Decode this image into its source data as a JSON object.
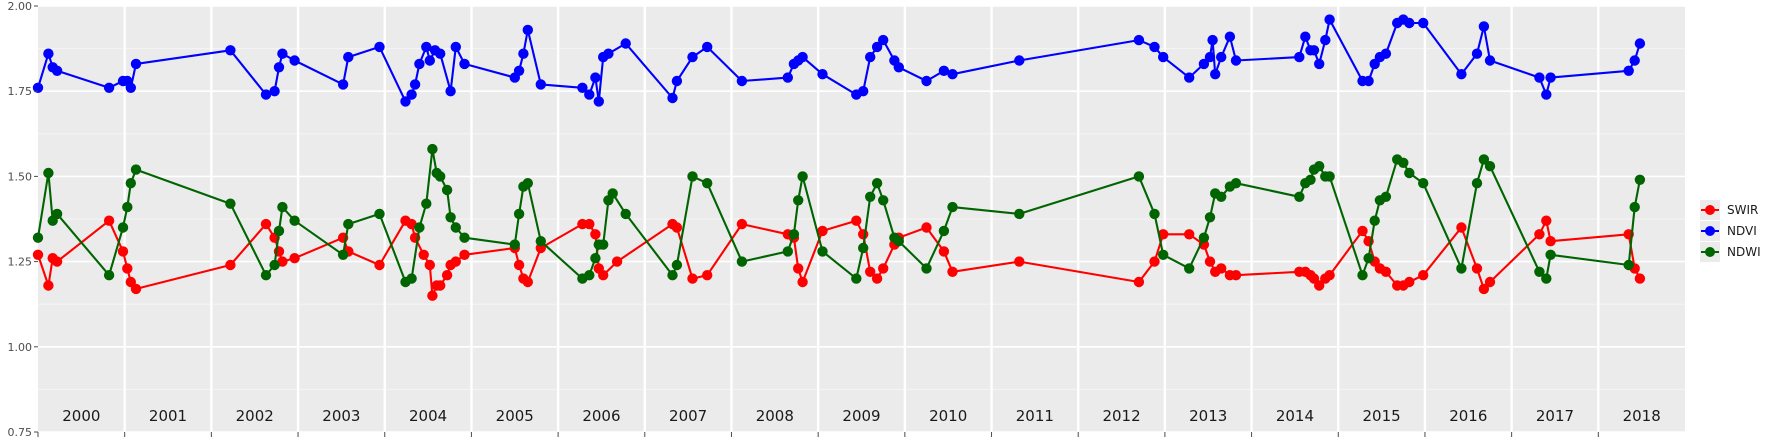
{
  "chart_data": {
    "type": "line",
    "title": "",
    "xlabel": "",
    "ylabel": "",
    "ylim": [
      0.75,
      2.0
    ],
    "yticks": [
      "0.75",
      "1.00",
      "1.25",
      "1.50",
      "1.75",
      "2.00"
    ],
    "x_unit": "year (decimal)",
    "x_range": [
      2000.0,
      2019.0
    ],
    "years": [
      "2000",
      "2001",
      "2002",
      "2003",
      "2004",
      "2005",
      "2006",
      "2007",
      "2008",
      "2009",
      "2010",
      "2011",
      "2012",
      "2013",
      "2014",
      "2015",
      "2016",
      "2017",
      "2018"
    ],
    "grid": true,
    "legend_position": "right",
    "series": [
      {
        "name": "SWIR",
        "color": "#ff0000",
        "points": [
          [
            2000.0,
            1.27
          ],
          [
            2000.12,
            1.18
          ],
          [
            2000.17,
            1.26
          ],
          [
            2000.22,
            1.25
          ],
          [
            2000.82,
            1.37
          ],
          [
            2000.98,
            1.28
          ],
          [
            2001.03,
            1.23
          ],
          [
            2001.07,
            1.19
          ],
          [
            2001.13,
            1.17
          ],
          [
            2002.22,
            1.24
          ],
          [
            2002.63,
            1.36
          ],
          [
            2002.73,
            1.32
          ],
          [
            2002.78,
            1.28
          ],
          [
            2002.82,
            1.25
          ],
          [
            2002.96,
            1.26
          ],
          [
            2003.52,
            1.32
          ],
          [
            2003.58,
            1.28
          ],
          [
            2003.94,
            1.24
          ],
          [
            2004.24,
            1.37
          ],
          [
            2004.31,
            1.36
          ],
          [
            2004.35,
            1.32
          ],
          [
            2004.45,
            1.27
          ],
          [
            2004.52,
            1.24
          ],
          [
            2004.55,
            1.15
          ],
          [
            2004.6,
            1.18
          ],
          [
            2004.64,
            1.18
          ],
          [
            2004.72,
            1.21
          ],
          [
            2004.76,
            1.24
          ],
          [
            2004.82,
            1.25
          ],
          [
            2004.92,
            1.27
          ],
          [
            2005.5,
            1.29
          ],
          [
            2005.55,
            1.24
          ],
          [
            2005.6,
            1.2
          ],
          [
            2005.65,
            1.19
          ],
          [
            2005.8,
            1.29
          ],
          [
            2006.28,
            1.36
          ],
          [
            2006.36,
            1.36
          ],
          [
            2006.43,
            1.33
          ],
          [
            2006.47,
            1.23
          ],
          [
            2006.52,
            1.21
          ],
          [
            2006.68,
            1.25
          ],
          [
            2007.32,
            1.36
          ],
          [
            2007.37,
            1.35
          ],
          [
            2007.55,
            1.2
          ],
          [
            2007.72,
            1.21
          ],
          [
            2008.12,
            1.36
          ],
          [
            2008.65,
            1.33
          ],
          [
            2008.72,
            1.32
          ],
          [
            2008.77,
            1.23
          ],
          [
            2008.82,
            1.19
          ],
          [
            2009.05,
            1.34
          ],
          [
            2009.44,
            1.37
          ],
          [
            2009.52,
            1.33
          ],
          [
            2009.6,
            1.22
          ],
          [
            2009.68,
            1.2
          ],
          [
            2009.75,
            1.23
          ],
          [
            2009.88,
            1.3
          ],
          [
            2009.93,
            1.32
          ],
          [
            2010.25,
            1.35
          ],
          [
            2010.45,
            1.28
          ],
          [
            2010.55,
            1.22
          ],
          [
            2011.32,
            1.25
          ],
          [
            2012.7,
            1.19
          ],
          [
            2012.88,
            1.25
          ],
          [
            2012.98,
            1.33
          ],
          [
            2013.28,
            1.33
          ],
          [
            2013.45,
            1.3
          ],
          [
            2013.52,
            1.25
          ],
          [
            2013.58,
            1.22
          ],
          [
            2013.65,
            1.23
          ],
          [
            2013.75,
            1.21
          ],
          [
            2013.82,
            1.21
          ],
          [
            2014.55,
            1.22
          ],
          [
            2014.62,
            1.22
          ],
          [
            2014.68,
            1.21
          ],
          [
            2014.72,
            1.2
          ],
          [
            2014.78,
            1.18
          ],
          [
            2014.85,
            1.2
          ],
          [
            2014.9,
            1.21
          ],
          [
            2015.28,
            1.34
          ],
          [
            2015.35,
            1.31
          ],
          [
            2015.42,
            1.25
          ],
          [
            2015.48,
            1.23
          ],
          [
            2015.55,
            1.22
          ],
          [
            2015.68,
            1.18
          ],
          [
            2015.75,
            1.18
          ],
          [
            2015.82,
            1.19
          ],
          [
            2015.98,
            1.21
          ],
          [
            2016.42,
            1.35
          ],
          [
            2016.6,
            1.23
          ],
          [
            2016.68,
            1.17
          ],
          [
            2016.75,
            1.19
          ],
          [
            2017.32,
            1.33
          ],
          [
            2017.4,
            1.37
          ],
          [
            2017.45,
            1.31
          ],
          [
            2018.35,
            1.33
          ],
          [
            2018.42,
            1.23
          ],
          [
            2018.48,
            1.2
          ]
        ]
      },
      {
        "name": "NDVI",
        "color": "#0000ff",
        "points": [
          [
            2000.0,
            1.76
          ],
          [
            2000.12,
            1.86
          ],
          [
            2000.17,
            1.82
          ],
          [
            2000.22,
            1.81
          ],
          [
            2000.82,
            1.76
          ],
          [
            2000.98,
            1.78
          ],
          [
            2001.03,
            1.78
          ],
          [
            2001.07,
            1.76
          ],
          [
            2001.13,
            1.83
          ],
          [
            2002.22,
            1.87
          ],
          [
            2002.63,
            1.74
          ],
          [
            2002.73,
            1.75
          ],
          [
            2002.78,
            1.82
          ],
          [
            2002.82,
            1.86
          ],
          [
            2002.96,
            1.84
          ],
          [
            2003.52,
            1.77
          ],
          [
            2003.58,
            1.85
          ],
          [
            2003.94,
            1.88
          ],
          [
            2004.24,
            1.72
          ],
          [
            2004.31,
            1.74
          ],
          [
            2004.35,
            1.77
          ],
          [
            2004.4,
            1.83
          ],
          [
            2004.48,
            1.88
          ],
          [
            2004.52,
            1.84
          ],
          [
            2004.58,
            1.87
          ],
          [
            2004.64,
            1.86
          ],
          [
            2004.76,
            1.75
          ],
          [
            2004.82,
            1.88
          ],
          [
            2004.92,
            1.83
          ],
          [
            2005.5,
            1.79
          ],
          [
            2005.55,
            1.81
          ],
          [
            2005.6,
            1.86
          ],
          [
            2005.65,
            1.93
          ],
          [
            2005.8,
            1.77
          ],
          [
            2006.28,
            1.76
          ],
          [
            2006.36,
            1.74
          ],
          [
            2006.43,
            1.79
          ],
          [
            2006.47,
            1.72
          ],
          [
            2006.52,
            1.85
          ],
          [
            2006.58,
            1.86
          ],
          [
            2006.78,
            1.89
          ],
          [
            2007.32,
            1.73
          ],
          [
            2007.37,
            1.78
          ],
          [
            2007.55,
            1.85
          ],
          [
            2007.72,
            1.88
          ],
          [
            2008.12,
            1.78
          ],
          [
            2008.65,
            1.79
          ],
          [
            2008.72,
            1.83
          ],
          [
            2008.77,
            1.84
          ],
          [
            2008.82,
            1.85
          ],
          [
            2009.05,
            1.8
          ],
          [
            2009.44,
            1.74
          ],
          [
            2009.52,
            1.75
          ],
          [
            2009.6,
            1.85
          ],
          [
            2009.68,
            1.88
          ],
          [
            2009.75,
            1.9
          ],
          [
            2009.88,
            1.84
          ],
          [
            2009.93,
            1.82
          ],
          [
            2010.25,
            1.78
          ],
          [
            2010.45,
            1.81
          ],
          [
            2010.55,
            1.8
          ],
          [
            2011.32,
            1.84
          ],
          [
            2012.7,
            1.9
          ],
          [
            2012.88,
            1.88
          ],
          [
            2012.98,
            1.85
          ],
          [
            2013.28,
            1.79
          ],
          [
            2013.45,
            1.83
          ],
          [
            2013.52,
            1.85
          ],
          [
            2013.55,
            1.9
          ],
          [
            2013.58,
            1.8
          ],
          [
            2013.65,
            1.85
          ],
          [
            2013.75,
            1.91
          ],
          [
            2013.82,
            1.84
          ],
          [
            2014.55,
            1.85
          ],
          [
            2014.62,
            1.91
          ],
          [
            2014.68,
            1.87
          ],
          [
            2014.72,
            1.87
          ],
          [
            2014.78,
            1.83
          ],
          [
            2014.85,
            1.9
          ],
          [
            2014.9,
            1.96
          ],
          [
            2015.28,
            1.78
          ],
          [
            2015.35,
            1.78
          ],
          [
            2015.42,
            1.83
          ],
          [
            2015.48,
            1.85
          ],
          [
            2015.55,
            1.86
          ],
          [
            2015.68,
            1.95
          ],
          [
            2015.75,
            1.96
          ],
          [
            2015.82,
            1.95
          ],
          [
            2015.98,
            1.95
          ],
          [
            2016.42,
            1.8
          ],
          [
            2016.6,
            1.86
          ],
          [
            2016.68,
            1.94
          ],
          [
            2016.75,
            1.84
          ],
          [
            2017.32,
            1.79
          ],
          [
            2017.4,
            1.74
          ],
          [
            2017.45,
            1.79
          ],
          [
            2018.35,
            1.81
          ],
          [
            2018.42,
            1.84
          ],
          [
            2018.48,
            1.89
          ]
        ]
      },
      {
        "name": "NDWI",
        "color": "#006400",
        "points": [
          [
            2000.0,
            1.32
          ],
          [
            2000.12,
            1.51
          ],
          [
            2000.17,
            1.37
          ],
          [
            2000.22,
            1.39
          ],
          [
            2000.82,
            1.21
          ],
          [
            2000.98,
            1.35
          ],
          [
            2001.03,
            1.41
          ],
          [
            2001.07,
            1.48
          ],
          [
            2001.13,
            1.52
          ],
          [
            2002.22,
            1.42
          ],
          [
            2002.63,
            1.21
          ],
          [
            2002.73,
            1.24
          ],
          [
            2002.78,
            1.34
          ],
          [
            2002.82,
            1.41
          ],
          [
            2002.96,
            1.37
          ],
          [
            2003.52,
            1.27
          ],
          [
            2003.58,
            1.36
          ],
          [
            2003.94,
            1.39
          ],
          [
            2004.24,
            1.19
          ],
          [
            2004.31,
            1.2
          ],
          [
            2004.4,
            1.35
          ],
          [
            2004.48,
            1.42
          ],
          [
            2004.55,
            1.58
          ],
          [
            2004.6,
            1.51
          ],
          [
            2004.64,
            1.5
          ],
          [
            2004.72,
            1.46
          ],
          [
            2004.76,
            1.38
          ],
          [
            2004.82,
            1.35
          ],
          [
            2004.92,
            1.32
          ],
          [
            2005.5,
            1.3
          ],
          [
            2005.55,
            1.39
          ],
          [
            2005.6,
            1.47
          ],
          [
            2005.65,
            1.48
          ],
          [
            2005.8,
            1.31
          ],
          [
            2006.28,
            1.2
          ],
          [
            2006.36,
            1.21
          ],
          [
            2006.43,
            1.26
          ],
          [
            2006.47,
            1.3
          ],
          [
            2006.52,
            1.3
          ],
          [
            2006.58,
            1.43
          ],
          [
            2006.63,
            1.45
          ],
          [
            2006.78,
            1.39
          ],
          [
            2007.32,
            1.21
          ],
          [
            2007.37,
            1.24
          ],
          [
            2007.55,
            1.5
          ],
          [
            2007.72,
            1.48
          ],
          [
            2008.12,
            1.25
          ],
          [
            2008.65,
            1.28
          ],
          [
            2008.72,
            1.33
          ],
          [
            2008.77,
            1.43
          ],
          [
            2008.82,
            1.5
          ],
          [
            2009.05,
            1.28
          ],
          [
            2009.44,
            1.2
          ],
          [
            2009.52,
            1.29
          ],
          [
            2009.6,
            1.44
          ],
          [
            2009.68,
            1.48
          ],
          [
            2009.75,
            1.43
          ],
          [
            2009.88,
            1.32
          ],
          [
            2009.93,
            1.31
          ],
          [
            2010.25,
            1.23
          ],
          [
            2010.45,
            1.34
          ],
          [
            2010.55,
            1.41
          ],
          [
            2011.32,
            1.39
          ],
          [
            2012.7,
            1.5
          ],
          [
            2012.88,
            1.39
          ],
          [
            2012.98,
            1.27
          ],
          [
            2013.28,
            1.23
          ],
          [
            2013.45,
            1.32
          ],
          [
            2013.52,
            1.38
          ],
          [
            2013.58,
            1.45
          ],
          [
            2013.65,
            1.44
          ],
          [
            2013.75,
            1.47
          ],
          [
            2013.82,
            1.48
          ],
          [
            2014.55,
            1.44
          ],
          [
            2014.62,
            1.48
          ],
          [
            2014.68,
            1.49
          ],
          [
            2014.72,
            1.52
          ],
          [
            2014.78,
            1.53
          ],
          [
            2014.85,
            1.5
          ],
          [
            2014.9,
            1.5
          ],
          [
            2015.28,
            1.21
          ],
          [
            2015.35,
            1.26
          ],
          [
            2015.42,
            1.37
          ],
          [
            2015.48,
            1.43
          ],
          [
            2015.55,
            1.44
          ],
          [
            2015.68,
            1.55
          ],
          [
            2015.75,
            1.54
          ],
          [
            2015.82,
            1.51
          ],
          [
            2015.98,
            1.48
          ],
          [
            2016.42,
            1.23
          ],
          [
            2016.6,
            1.48
          ],
          [
            2016.68,
            1.55
          ],
          [
            2016.75,
            1.53
          ],
          [
            2017.32,
            1.22
          ],
          [
            2017.4,
            1.2
          ],
          [
            2017.45,
            1.27
          ],
          [
            2018.35,
            1.24
          ],
          [
            2018.42,
            1.41
          ],
          [
            2018.48,
            1.49
          ]
        ]
      }
    ]
  }
}
